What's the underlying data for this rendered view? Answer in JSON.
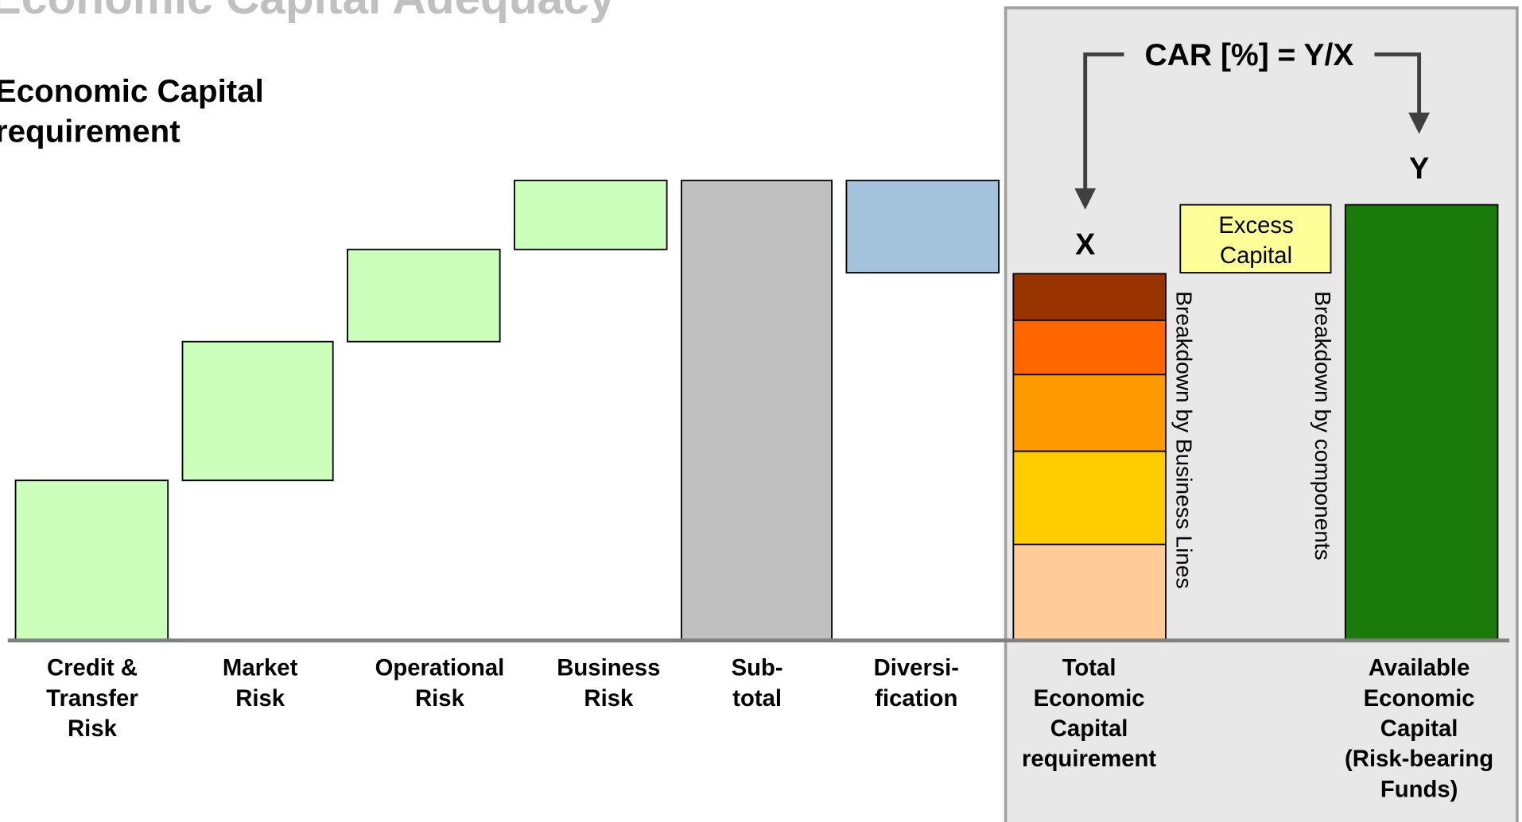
{
  "title": "Economic Capital Adequacy",
  "subtitle": [
    "Economic Capital",
    "requirement"
  ],
  "formula": "CAR [%] = Y/X",
  "x_label": "X",
  "y_label": "Y",
  "excess_capital": [
    "Excess",
    "Capital"
  ],
  "breakdown_business_lines": "Breakdown by Business Lines",
  "breakdown_components": "Breakdown by components",
  "categories": [
    [
      "Credit &",
      "Transfer",
      "Risk"
    ],
    [
      "Market",
      "Risk"
    ],
    [
      "Operational",
      "Risk"
    ],
    [
      "Business",
      "Risk"
    ],
    [
      "Sub-",
      "total"
    ],
    [
      "Diversi-",
      "fication"
    ],
    [
      "Total",
      "Economic",
      "Capital",
      "requirement"
    ],
    [
      "Available",
      "Economic",
      "Capital",
      "(Risk-bearing",
      "Funds)"
    ]
  ]
}
